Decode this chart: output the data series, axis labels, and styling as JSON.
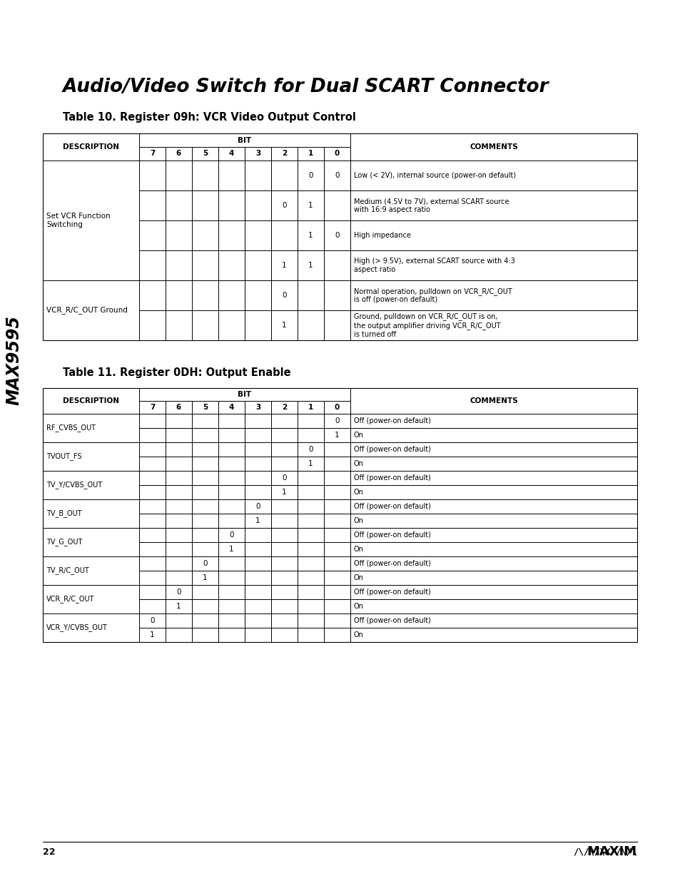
{
  "page_title": "Audio/Video Switch for Dual SCART Connector",
  "side_label": "MAX9595",
  "page_number": "22",
  "table10_title": "Table 10. Register 09h: VCR Video Output Control",
  "table11_title": "Table 11. Register 0DH: Output Enable",
  "bg_color": "#ffffff",
  "text_color": "#000000",
  "header_fontsize": 7.5,
  "cell_fontsize": 7.5,
  "title_fontsize": 19,
  "table_title_fontsize": 10.5,
  "table10_groups": [
    {
      "desc": "Set VCR Function\nSwitching",
      "span": 4,
      "rows": [
        {
          "bits": {
            "1": "0",
            "0": "0"
          },
          "comment": "Low (< 2V), internal source (power-on default)"
        },
        {
          "bits": {
            "2": "0",
            "1": "1"
          },
          "comment": "Medium (4.5V to 7V), external SCART source\nwith 16:9 aspect ratio"
        },
        {
          "bits": {
            "1": "1",
            "0": "0"
          },
          "comment": "High impedance"
        },
        {
          "bits": {
            "2": "1",
            "1": "1"
          },
          "comment": "High (> 9.5V), external SCART source with 4:3\naspect ratio"
        }
      ]
    },
    {
      "desc": "VCR_R/C_OUT Ground",
      "span": 2,
      "rows": [
        {
          "bits": {
            "2": "0"
          },
          "comment": "Normal operation, pulldown on VCR_R/C_OUT\nis off (power-on default)"
        },
        {
          "bits": {
            "2": "1"
          },
          "comment": "Ground, pulldown on VCR_R/C_OUT is on,\nthe output amplifier driving VCR_R/C_OUT\nis turned off"
        }
      ]
    }
  ],
  "table11_groups": [
    {
      "desc": "RF_CVBS_OUT",
      "rows": [
        {
          "bits": {
            "0": "0"
          },
          "comment": "Off (power-on default)"
        },
        {
          "bits": {
            "0": "1"
          },
          "comment": "On"
        }
      ]
    },
    {
      "desc": "TVOUT_FS",
      "rows": [
        {
          "bits": {
            "1": "0"
          },
          "comment": "Off (power-on default)"
        },
        {
          "bits": {
            "1": "1"
          },
          "comment": "On"
        }
      ]
    },
    {
      "desc": "TV_Y/CVBS_OUT",
      "rows": [
        {
          "bits": {
            "2": "0"
          },
          "comment": "Off (power-on default)"
        },
        {
          "bits": {
            "2": "1"
          },
          "comment": "On"
        }
      ]
    },
    {
      "desc": "TV_B_OUT",
      "rows": [
        {
          "bits": {
            "3": "0"
          },
          "comment": "Off (power-on default)"
        },
        {
          "bits": {
            "3": "1"
          },
          "comment": "On"
        }
      ]
    },
    {
      "desc": "TV_G_OUT",
      "rows": [
        {
          "bits": {
            "4": "0"
          },
          "comment": "Off (power-on default)"
        },
        {
          "bits": {
            "4": "1"
          },
          "comment": "On"
        }
      ]
    },
    {
      "desc": "TV_R/C_OUT",
      "rows": [
        {
          "bits": {
            "5": "0"
          },
          "comment": "Off (power-on default)"
        },
        {
          "bits": {
            "5": "1"
          },
          "comment": "On"
        }
      ]
    },
    {
      "desc": "VCR_R/C_OUT",
      "rows": [
        {
          "bits": {
            "6": "0"
          },
          "comment": "Off (power-on default)"
        },
        {
          "bits": {
            "6": "1"
          },
          "comment": "On"
        }
      ]
    },
    {
      "desc": "VCR_Y/CVBS_OUT",
      "rows": [
        {
          "bits": {
            "7": "0"
          },
          "comment": "Off (power-on default)"
        },
        {
          "bits": {
            "7": "1"
          },
          "comment": "On"
        }
      ]
    }
  ]
}
